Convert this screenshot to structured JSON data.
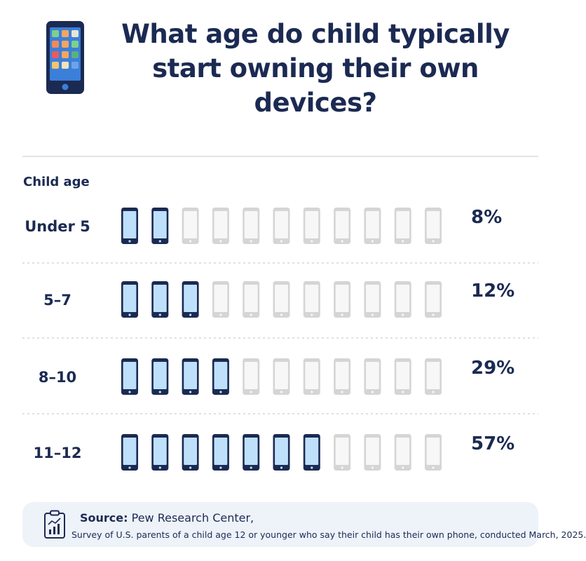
{
  "title_line1": "What age do child typically",
  "title_line2": "start owning their own devices?",
  "axis_title": "Child age",
  "source": {
    "label": "Source:",
    "name": "Pew Research Center,",
    "note": "Survey of U.S. parents of a child age 12 or younger who say their child has their own phone, conducted March, 2025."
  },
  "colors": {
    "filled_frame": "#1b2a52",
    "filled_screen": "#bfe0fb",
    "empty_frame": "#d5d5d5",
    "empty_screen": "#f7f7f7",
    "text": "#1b2a52"
  },
  "chart_data": {
    "type": "pictograph",
    "icon": "smartphone-icon",
    "icons_per_row": 11,
    "categories": [
      "Under 5",
      "5–7",
      "8–10",
      "11–12"
    ],
    "values": [
      8,
      12,
      29,
      57
    ],
    "value_labels": [
      "8%",
      "12%",
      "29%",
      "57%"
    ],
    "filled_icons": [
      2,
      3,
      4,
      7
    ],
    "unit": "%"
  }
}
